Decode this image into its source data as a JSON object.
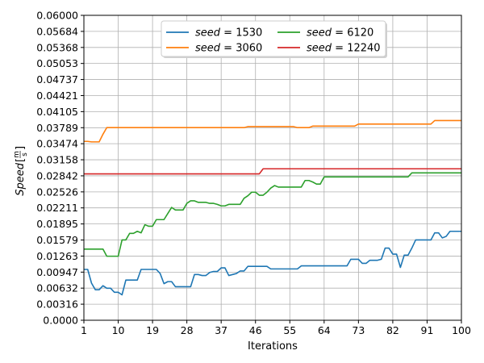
{
  "chart_data": {
    "type": "line",
    "xlabel": "Iterations",
    "ylabel": "Speed[m/s]",
    "ylabel_parts": {
      "base": "Speed",
      "num": "m",
      "den": "s"
    },
    "xlim": [
      1,
      100
    ],
    "ylim": [
      0.0,
      0.06
    ],
    "grid": true,
    "legend_position": "top-center",
    "x_ticks": [
      "1",
      "10",
      "19",
      "28",
      "37",
      "46",
      "55",
      "64",
      "73",
      "82",
      "91",
      "100"
    ],
    "y_ticks": [
      "0.0000",
      "0.00316",
      "0.00632",
      "0.00947",
      "0.01263",
      "0.01579",
      "0.01895",
      "0.02211",
      "0.02526",
      "0.02842",
      "0.03158",
      "0.03474",
      "0.03789",
      "0.04105",
      "0.04421",
      "0.04737",
      "0.05053",
      "0.05368",
      "0.05684",
      "0.06000"
    ],
    "series": [
      {
        "name": "seed = 1530",
        "legend_label": "seed",
        "legend_value": "1530",
        "color": "#1f77b4",
        "points": [
          [
            1,
            0.01
          ],
          [
            2,
            0.01
          ],
          [
            3,
            0.0073
          ],
          [
            4,
            0.006
          ],
          [
            5,
            0.006
          ],
          [
            6,
            0.0068
          ],
          [
            7,
            0.0063
          ],
          [
            8,
            0.0063
          ],
          [
            9,
            0.0055
          ],
          [
            10,
            0.0055
          ],
          [
            11,
            0.005
          ],
          [
            12,
            0.0079
          ],
          [
            13,
            0.0079
          ],
          [
            14,
            0.0079
          ],
          [
            15,
            0.0079
          ],
          [
            16,
            0.01
          ],
          [
            17,
            0.01
          ],
          [
            18,
            0.01
          ],
          [
            19,
            0.01
          ],
          [
            20,
            0.01
          ],
          [
            21,
            0.0092
          ],
          [
            22,
            0.0072
          ],
          [
            23,
            0.0076
          ],
          [
            24,
            0.0076
          ],
          [
            25,
            0.0066
          ],
          [
            26,
            0.0066
          ],
          [
            27,
            0.0066
          ],
          [
            28,
            0.0066
          ],
          [
            29,
            0.0066
          ],
          [
            30,
            0.009
          ],
          [
            31,
            0.009
          ],
          [
            32,
            0.0088
          ],
          [
            33,
            0.0088
          ],
          [
            34,
            0.0094
          ],
          [
            35,
            0.0096
          ],
          [
            36,
            0.0096
          ],
          [
            37,
            0.0103
          ],
          [
            38,
            0.0103
          ],
          [
            39,
            0.0088
          ],
          [
            40,
            0.009
          ],
          [
            41,
            0.0092
          ],
          [
            42,
            0.0097
          ],
          [
            43,
            0.0097
          ],
          [
            44,
            0.0106
          ],
          [
            45,
            0.0106
          ],
          [
            46,
            0.0106
          ],
          [
            47,
            0.0106
          ],
          [
            48,
            0.0106
          ],
          [
            49,
            0.0106
          ],
          [
            50,
            0.0101
          ],
          [
            51,
            0.0101
          ],
          [
            52,
            0.0101
          ],
          [
            53,
            0.0101
          ],
          [
            54,
            0.0101
          ],
          [
            55,
            0.0101
          ],
          [
            56,
            0.0101
          ],
          [
            57,
            0.0101
          ],
          [
            58,
            0.0107
          ],
          [
            59,
            0.0107
          ],
          [
            60,
            0.0107
          ],
          [
            61,
            0.0107
          ],
          [
            62,
            0.0107
          ],
          [
            63,
            0.0107
          ],
          [
            64,
            0.0107
          ],
          [
            65,
            0.0107
          ],
          [
            66,
            0.0107
          ],
          [
            67,
            0.0107
          ],
          [
            68,
            0.0107
          ],
          [
            69,
            0.0107
          ],
          [
            70,
            0.0107
          ],
          [
            71,
            0.012
          ],
          [
            72,
            0.012
          ],
          [
            73,
            0.012
          ],
          [
            74,
            0.0112
          ],
          [
            75,
            0.0112
          ],
          [
            76,
            0.0118
          ],
          [
            77,
            0.0118
          ],
          [
            78,
            0.0118
          ],
          [
            79,
            0.012
          ],
          [
            80,
            0.0142
          ],
          [
            81,
            0.0142
          ],
          [
            82,
            0.013
          ],
          [
            83,
            0.013
          ],
          [
            84,
            0.0104
          ],
          [
            85,
            0.0128
          ],
          [
            86,
            0.0128
          ],
          [
            87,
            0.0142
          ],
          [
            88,
            0.0158
          ],
          [
            89,
            0.0158
          ],
          [
            90,
            0.0158
          ],
          [
            91,
            0.0158
          ],
          [
            92,
            0.0158
          ],
          [
            93,
            0.0172
          ],
          [
            94,
            0.0172
          ],
          [
            95,
            0.0162
          ],
          [
            96,
            0.0165
          ],
          [
            97,
            0.0175
          ],
          [
            98,
            0.0175
          ],
          [
            99,
            0.0175
          ],
          [
            100,
            0.0175
          ]
        ]
      },
      {
        "name": "seed = 3060",
        "legend_label": "seed",
        "legend_value": "3060",
        "color": "#ff7f0e",
        "points": [
          [
            1,
            0.0352
          ],
          [
            2,
            0.0352
          ],
          [
            3,
            0.0351
          ],
          [
            4,
            0.0351
          ],
          [
            5,
            0.0351
          ],
          [
            6,
            0.0366
          ],
          [
            7,
            0.0379
          ],
          [
            8,
            0.0379
          ],
          [
            20,
            0.0379
          ],
          [
            30,
            0.0379
          ],
          [
            40,
            0.0379
          ],
          [
            43,
            0.0379
          ],
          [
            44,
            0.0381
          ],
          [
            50,
            0.0381
          ],
          [
            56,
            0.0381
          ],
          [
            57,
            0.0379
          ],
          [
            60,
            0.0379
          ],
          [
            61,
            0.0382
          ],
          [
            70,
            0.0382
          ],
          [
            72,
            0.0382
          ],
          [
            73,
            0.0386
          ],
          [
            80,
            0.0386
          ],
          [
            90,
            0.0386
          ],
          [
            92,
            0.0386
          ],
          [
            93,
            0.0393
          ],
          [
            95,
            0.0393
          ],
          [
            100,
            0.0393
          ]
        ]
      },
      {
        "name": "seed = 6120",
        "legend_label": "seed",
        "legend_value": "6120",
        "color": "#2ca02c",
        "points": [
          [
            1,
            0.014
          ],
          [
            2,
            0.014
          ],
          [
            3,
            0.014
          ],
          [
            4,
            0.014
          ],
          [
            5,
            0.014
          ],
          [
            6,
            0.014
          ],
          [
            7,
            0.0126
          ],
          [
            8,
            0.0126
          ],
          [
            9,
            0.0126
          ],
          [
            10,
            0.0126
          ],
          [
            11,
            0.0158
          ],
          [
            12,
            0.0158
          ],
          [
            13,
            0.0171
          ],
          [
            14,
            0.0171
          ],
          [
            15,
            0.0175
          ],
          [
            16,
            0.0172
          ],
          [
            17,
            0.0188
          ],
          [
            18,
            0.0185
          ],
          [
            19,
            0.0185
          ],
          [
            20,
            0.0198
          ],
          [
            21,
            0.0198
          ],
          [
            22,
            0.0198
          ],
          [
            23,
            0.021
          ],
          [
            24,
            0.0222
          ],
          [
            25,
            0.0217
          ],
          [
            26,
            0.0217
          ],
          [
            27,
            0.0217
          ],
          [
            28,
            0.023
          ],
          [
            29,
            0.0235
          ],
          [
            30,
            0.0235
          ],
          [
            31,
            0.0232
          ],
          [
            32,
            0.0232
          ],
          [
            33,
            0.0232
          ],
          [
            34,
            0.023
          ],
          [
            35,
            0.023
          ],
          [
            36,
            0.0228
          ],
          [
            37,
            0.0225
          ],
          [
            38,
            0.0225
          ],
          [
            39,
            0.0228
          ],
          [
            40,
            0.0228
          ],
          [
            41,
            0.0228
          ],
          [
            42,
            0.0228
          ],
          [
            43,
            0.024
          ],
          [
            44,
            0.0245
          ],
          [
            45,
            0.0252
          ],
          [
            46,
            0.0252
          ],
          [
            47,
            0.0246
          ],
          [
            48,
            0.0246
          ],
          [
            49,
            0.0252
          ],
          [
            50,
            0.026
          ],
          [
            51,
            0.0265
          ],
          [
            52,
            0.0262
          ],
          [
            53,
            0.0262
          ],
          [
            54,
            0.0262
          ],
          [
            55,
            0.0262
          ],
          [
            56,
            0.0262
          ],
          [
            57,
            0.0262
          ],
          [
            58,
            0.0262
          ],
          [
            59,
            0.0275
          ],
          [
            60,
            0.0275
          ],
          [
            61,
            0.0272
          ],
          [
            62,
            0.0268
          ],
          [
            63,
            0.0268
          ],
          [
            64,
            0.0282
          ],
          [
            65,
            0.0282
          ],
          [
            70,
            0.0282
          ],
          [
            75,
            0.0282
          ],
          [
            80,
            0.0282
          ],
          [
            85,
            0.0282
          ],
          [
            86,
            0.0282
          ],
          [
            87,
            0.029
          ],
          [
            90,
            0.029
          ],
          [
            95,
            0.029
          ],
          [
            100,
            0.029
          ]
        ]
      },
      {
        "name": "seed = 12240",
        "legend_label": "seed",
        "legend_value": "12240",
        "color": "#d62728",
        "points": [
          [
            1,
            0.0288
          ],
          [
            10,
            0.0288
          ],
          [
            20,
            0.0288
          ],
          [
            30,
            0.0288
          ],
          [
            40,
            0.0288
          ],
          [
            46,
            0.0288
          ],
          [
            47,
            0.0288
          ],
          [
            48,
            0.0298
          ],
          [
            55,
            0.0298
          ],
          [
            60,
            0.0298
          ],
          [
            70,
            0.0298
          ],
          [
            80,
            0.0298
          ],
          [
            90,
            0.0298
          ],
          [
            100,
            0.0298
          ]
        ]
      }
    ]
  }
}
